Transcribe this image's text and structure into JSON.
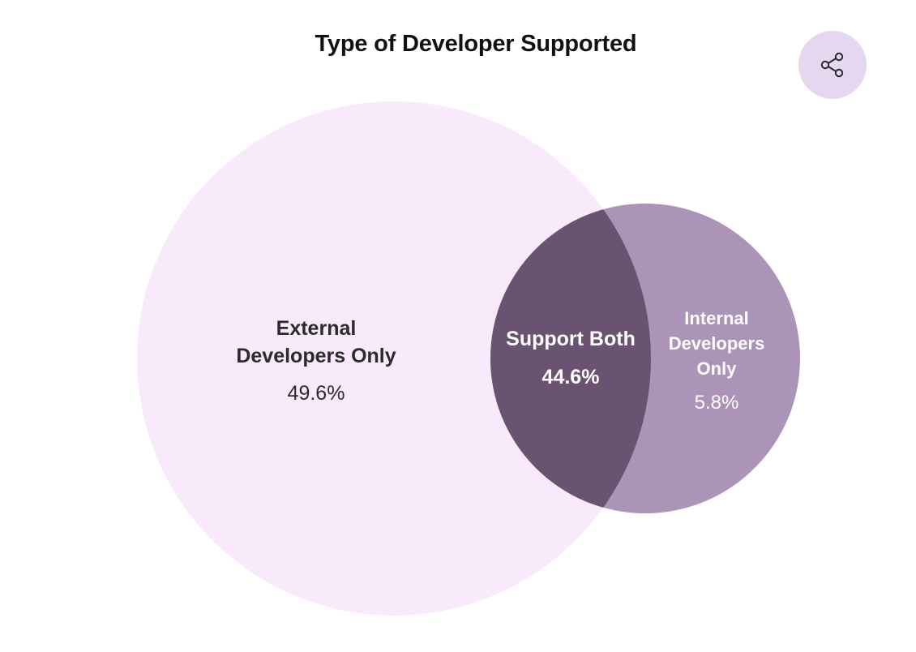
{
  "title": "Type of Developer Supported",
  "share": {
    "icon": "share-icon"
  },
  "colors": {
    "external": "#f8eafb",
    "internal": "#ac94b8",
    "overlap": "#6a5370",
    "share_bg": "#e5d7f0"
  },
  "chart_data": {
    "type": "venn",
    "title": "Type of Developer Supported",
    "sets": [
      {
        "key": "external",
        "label": "External Developers Only",
        "value": 49.6,
        "display": "49.6%"
      },
      {
        "key": "internal",
        "label": "Internal Developers Only",
        "value": 5.8,
        "display": "5.8%"
      }
    ],
    "intersection": {
      "label": "Support Both",
      "value": 44.6,
      "display": "44.6%"
    }
  },
  "labels": {
    "external_line1": "External",
    "external_line2": "Developers Only",
    "external_value": "49.6%",
    "both_name": "Support Both",
    "both_value": "44.6%",
    "internal_line1": "Internal",
    "internal_line2": "Developers",
    "internal_line3": "Only",
    "internal_value": "5.8%"
  }
}
